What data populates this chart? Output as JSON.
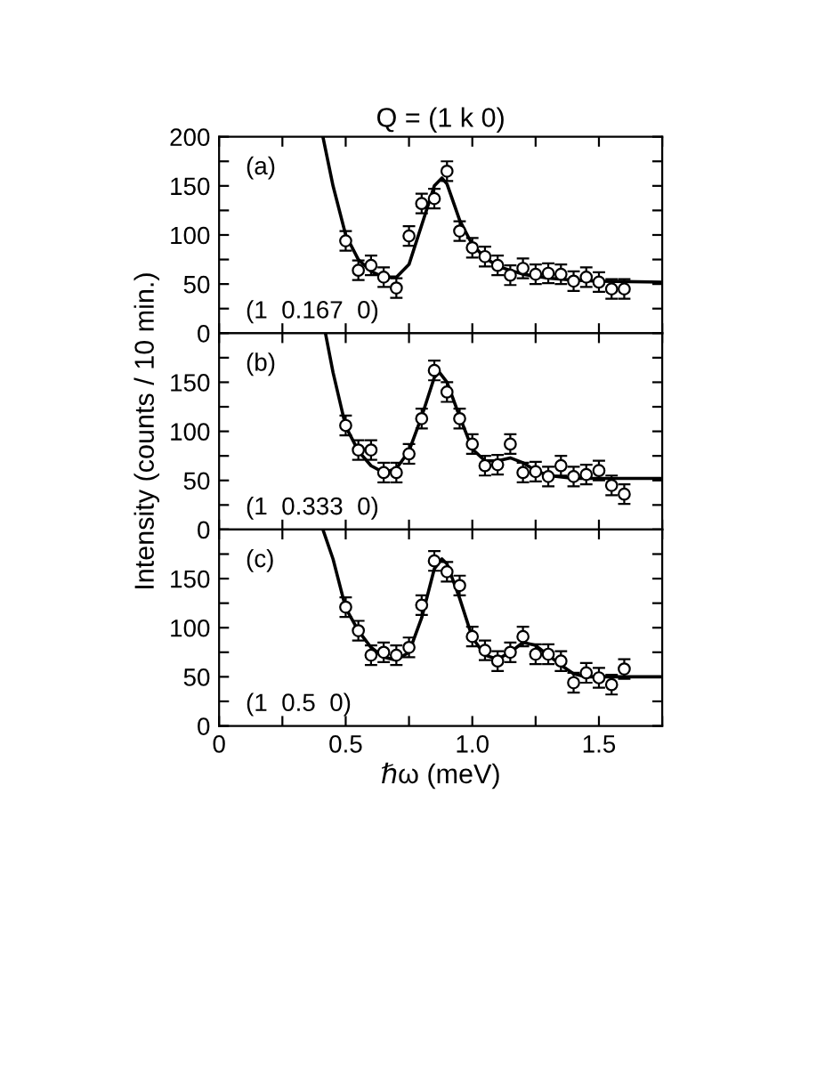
{
  "chart_data": [
    {
      "type": "scatter",
      "title": "Q = (1 k 0)",
      "annotations": [
        "(a)",
        "(1  0.167  0)"
      ],
      "xlim": [
        0,
        1.75
      ],
      "ylim": [
        0,
        200
      ],
      "tick_labels": "y",
      "yticks": [
        0,
        {
          "value": 25,
          "label": null
        },
        50,
        {
          "value": 75,
          "label": null
        },
        100,
        {
          "value": 125,
          "label": null
        },
        150,
        {
          "value": 175,
          "label": null
        },
        200
      ],
      "marker": "circle",
      "series": [
        {
          "color": "#000000",
          "x": [
            0.5,
            0.55,
            0.6,
            0.65,
            0.7,
            0.75,
            0.8,
            0.85,
            0.9,
            0.95,
            1.0,
            1.05,
            1.1,
            1.15,
            1.2,
            1.25,
            1.3,
            1.35,
            1.4,
            1.45,
            1.5,
            1.55,
            1.6
          ],
          "values": [
            94,
            64,
            69,
            57,
            46,
            99,
            132,
            137,
            165,
            104,
            87,
            78,
            69,
            59,
            66,
            60,
            61,
            60,
            53,
            57,
            52,
            45,
            45
          ],
          "errors": [
            10,
            10,
            10,
            10,
            10,
            10,
            10,
            10,
            10,
            10,
            10,
            10,
            10,
            10,
            10,
            10,
            10,
            10,
            10,
            10,
            10,
            10,
            10
          ]
        },
        {
          "type": "line",
          "color": "#000000",
          "marker": "none",
          "x": [
            0.41,
            0.45,
            0.5,
            0.55,
            0.6,
            0.65,
            0.7,
            0.75,
            0.8,
            0.85,
            0.88,
            0.9,
            0.95,
            1.0,
            1.05,
            1.1,
            1.2,
            1.3,
            1.4,
            1.5,
            1.75
          ],
          "values": [
            200,
            150,
            100,
            75,
            63,
            57,
            57,
            70,
            110,
            150,
            158,
            152,
            115,
            90,
            77,
            68,
            60,
            56,
            54,
            53,
            52
          ]
        }
      ]
    },
    {
      "type": "scatter",
      "ylabel": "Intensity (counts / 10 min.)",
      "annotations": [
        "(b)",
        "(1  0.333  0)"
      ],
      "xlim": [
        0,
        1.75
      ],
      "ylim": [
        0,
        200
      ],
      "tick_labels": "y",
      "yticks": [
        0,
        {
          "value": 25,
          "label": null
        },
        50,
        {
          "value": 75,
          "label": null
        },
        100,
        {
          "value": 125,
          "label": null
        },
        150,
        {
          "value": 175,
          "label": null
        },
        {
          "value": 200,
          "label": null
        }
      ],
      "marker": "circle",
      "series": [
        {
          "color": "#000000",
          "x": [
            0.5,
            0.55,
            0.6,
            0.65,
            0.7,
            0.75,
            0.8,
            0.85,
            0.9,
            0.95,
            1.0,
            1.05,
            1.1,
            1.15,
            1.2,
            1.25,
            1.3,
            1.35,
            1.4,
            1.45,
            1.5,
            1.55,
            1.6
          ],
          "values": [
            106,
            81,
            81,
            58,
            58,
            77,
            113,
            162,
            140,
            113,
            87,
            65,
            66,
            87,
            58,
            59,
            54,
            65,
            54,
            56,
            60,
            45,
            36
          ],
          "errors": [
            10,
            10,
            10,
            10,
            10,
            10,
            10,
            10,
            10,
            10,
            10,
            10,
            10,
            10,
            10,
            10,
            10,
            10,
            10,
            10,
            10,
            10,
            10
          ]
        },
        {
          "type": "line",
          "color": "#000000",
          "marker": "none",
          "x": [
            0.42,
            0.45,
            0.5,
            0.55,
            0.6,
            0.65,
            0.7,
            0.75,
            0.8,
            0.85,
            0.87,
            0.9,
            0.95,
            1.0,
            1.05,
            1.1,
            1.15,
            1.2,
            1.25,
            1.3,
            1.4,
            1.5,
            1.75
          ],
          "values": [
            200,
            160,
            105,
            80,
            65,
            58,
            62,
            80,
            115,
            155,
            160,
            150,
            115,
            82,
            70,
            70,
            73,
            68,
            60,
            55,
            52,
            52,
            52
          ]
        }
      ]
    },
    {
      "type": "scatter",
      "xlabel": "ℏω (meV)",
      "annotations": [
        "(c)",
        "(1  0.5  0)"
      ],
      "xlim": [
        0,
        1.75
      ],
      "ylim": [
        0,
        200
      ],
      "xticks": [
        0,
        {
          "value": 0.25,
          "label": null
        },
        0.5,
        {
          "value": 0.75,
          "label": null
        },
        {
          "value": 1.0,
          "label": "1.0"
        },
        {
          "value": 1.25,
          "label": null
        },
        1.5,
        {
          "value": 1.75,
          "label": null
        }
      ],
      "yticks": [
        0,
        {
          "value": 25,
          "label": null
        },
        50,
        {
          "value": 75,
          "label": null
        },
        100,
        {
          "value": 125,
          "label": null
        },
        150,
        {
          "value": 175,
          "label": null
        },
        {
          "value": 200,
          "label": null
        }
      ],
      "marker": "circle",
      "series": [
        {
          "color": "#000000",
          "x": [
            0.5,
            0.55,
            0.6,
            0.65,
            0.7,
            0.75,
            0.8,
            0.85,
            0.9,
            0.95,
            1.0,
            1.05,
            1.1,
            1.15,
            1.2,
            1.25,
            1.3,
            1.35,
            1.4,
            1.45,
            1.5,
            1.55,
            1.6
          ],
          "values": [
            121,
            97,
            72,
            75,
            72,
            80,
            123,
            168,
            157,
            143,
            91,
            77,
            66,
            75,
            91,
            73,
            73,
            66,
            44,
            54,
            49,
            42,
            58
          ],
          "errors": [
            10,
            10,
            10,
            10,
            10,
            10,
            10,
            10,
            10,
            10,
            10,
            10,
            10,
            10,
            10,
            10,
            10,
            10,
            10,
            10,
            10,
            10,
            10
          ]
        },
        {
          "type": "line",
          "color": "#000000",
          "marker": "none",
          "x": [
            0.41,
            0.45,
            0.5,
            0.55,
            0.6,
            0.65,
            0.7,
            0.75,
            0.8,
            0.85,
            0.88,
            0.9,
            0.95,
            1.0,
            1.05,
            1.1,
            1.15,
            1.2,
            1.25,
            1.3,
            1.35,
            1.4,
            1.45,
            1.75
          ],
          "values": [
            200,
            170,
            120,
            97,
            80,
            70,
            67,
            75,
            110,
            160,
            170,
            165,
            130,
            90,
            72,
            68,
            75,
            85,
            82,
            72,
            62,
            53,
            50,
            50
          ]
        }
      ]
    }
  ]
}
